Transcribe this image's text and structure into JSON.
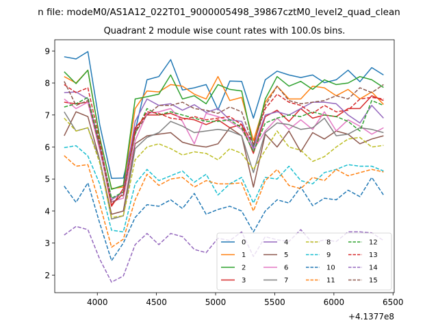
{
  "figure": {
    "suptitle": "n file: modeM0/AS1A12_022T01_9000005498_39867cztM0_level2_quad_clean",
    "offset_label": "+4.1377e8"
  },
  "chart_data": {
    "type": "line",
    "title": "Quadrant 2 module wise count rates with 100.0s bins.",
    "xlabel": "",
    "ylabel": "",
    "xlim": [
      3640,
      6510
    ],
    "ylim": [
      1.45,
      9.35
    ],
    "x_offset": 413770000,
    "xticks": [
      4000,
      4500,
      5000,
      5500,
      6000,
      6500
    ],
    "yticks": [
      2,
      3,
      4,
      5,
      6,
      7,
      8,
      9
    ],
    "grid": false,
    "legend": {
      "placement": "lower-right",
      "ncol": 4
    },
    "x": [
      3720,
      3820,
      3920,
      4020,
      4120,
      4220,
      4320,
      4420,
      4520,
      4620,
      4720,
      4820,
      4920,
      5020,
      5120,
      5220,
      5320,
      5420,
      5520,
      5620,
      5720,
      5820,
      5920,
      6020,
      6120,
      6220,
      6320,
      6420
    ],
    "series": [
      {
        "name": "0",
        "color": "#1f77b4",
        "dash": "solid",
        "values": [
          8.82,
          8.75,
          8.98,
          6.7,
          5.02,
          5.03,
          6.5,
          8.1,
          8.2,
          8.73,
          7.78,
          7.85,
          7.95,
          7.16,
          8.06,
          8.05,
          6.9,
          8.1,
          8.37,
          8.25,
          8.17,
          8.25,
          8.01,
          8.1,
          8.4,
          8.04,
          8.48,
          8.25
        ]
      },
      {
        "name": "1",
        "color": "#ff7f0e",
        "dash": "solid",
        "values": [
          8.2,
          8.0,
          8.4,
          6.3,
          4.7,
          4.75,
          7.2,
          7.75,
          7.72,
          7.95,
          7.9,
          7.65,
          7.5,
          8.2,
          7.45,
          7.55,
          6.2,
          7.4,
          7.9,
          7.5,
          7.5,
          7.9,
          7.85,
          7.6,
          7.8,
          7.5,
          7.72,
          7.33
        ]
      },
      {
        "name": "2",
        "color": "#2ca02c",
        "dash": "solid",
        "values": [
          8.35,
          7.98,
          8.4,
          6.3,
          4.68,
          4.8,
          7.5,
          7.57,
          7.65,
          8.25,
          7.5,
          7.6,
          7.35,
          7.95,
          7.8,
          7.75,
          6.0,
          7.5,
          8.2,
          7.9,
          8.05,
          7.8,
          8.1,
          7.95,
          8.0,
          8.2,
          8.1,
          7.86
        ]
      },
      {
        "name": "3",
        "color": "#d62728",
        "dash": "solid",
        "values": [
          7.4,
          7.35,
          7.4,
          6.0,
          4.15,
          4.7,
          6.6,
          7.0,
          7.0,
          7.05,
          6.9,
          6.85,
          6.7,
          6.85,
          6.6,
          6.7,
          5.8,
          6.95,
          7.15,
          6.8,
          7.2,
          6.9,
          7.0,
          6.95,
          7.2,
          7.2,
          7.6,
          7.45
        ]
      },
      {
        "name": "4",
        "color": "#9467bd",
        "dash": "solid",
        "values": [
          7.7,
          7.72,
          7.5,
          6.1,
          4.35,
          4.6,
          6.8,
          7.5,
          7.3,
          7.35,
          7.15,
          7.32,
          7.08,
          7.2,
          6.85,
          6.8,
          5.95,
          7.0,
          7.1,
          7.0,
          7.2,
          7.4,
          7.4,
          7.35,
          7.0,
          6.75,
          7.3,
          6.9
        ]
      },
      {
        "name": "5",
        "color": "#8c564b",
        "dash": "solid",
        "values": [
          6.35,
          7.1,
          6.95,
          5.6,
          3.9,
          4.0,
          6.1,
          6.35,
          6.4,
          6.45,
          6.15,
          6.05,
          6.0,
          6.1,
          6.6,
          6.35,
          4.75,
          6.4,
          6.0,
          6.5,
          5.85,
          6.45,
          6.25,
          6.5,
          6.4,
          6.1,
          6.25,
          6.35
        ]
      },
      {
        "name": "6",
        "color": "#e377c2",
        "dash": "solid",
        "values": [
          7.5,
          7.2,
          7.4,
          5.9,
          4.3,
          4.4,
          6.2,
          7.05,
          7.1,
          7.2,
          6.8,
          6.1,
          7.05,
          6.95,
          6.8,
          6.55,
          5.9,
          6.5,
          6.9,
          6.55,
          6.85,
          6.55,
          7.1,
          6.5,
          6.85,
          6.65,
          6.4,
          6.6
        ]
      },
      {
        "name": "7",
        "color": "#7f7f7f",
        "dash": "solid",
        "values": [
          7.1,
          6.5,
          6.6,
          5.6,
          3.75,
          3.85,
          5.95,
          6.3,
          6.45,
          6.8,
          6.65,
          6.45,
          6.5,
          6.55,
          6.5,
          6.35,
          5.2,
          6.45,
          6.75,
          6.7,
          6.55,
          6.6,
          6.9,
          6.35,
          6.4,
          6.6,
          6.55,
          6.45
        ]
      },
      {
        "name": "8",
        "color": "#bcbd22",
        "dash": "dashed",
        "values": [
          6.9,
          6.5,
          6.6,
          5.5,
          3.8,
          3.85,
          5.6,
          6.0,
          6.1,
          5.95,
          5.75,
          5.85,
          5.8,
          5.6,
          5.95,
          5.8,
          5.3,
          5.9,
          6.5,
          6.0,
          5.9,
          5.55,
          5.7,
          6.0,
          6.25,
          6.3,
          6.0,
          6.05
        ]
      },
      {
        "name": "9",
        "color": "#17becf",
        "dash": "dashed",
        "values": [
          5.98,
          6.04,
          5.72,
          4.85,
          3.4,
          3.35,
          4.85,
          5.3,
          4.95,
          5.1,
          5.25,
          4.9,
          5.15,
          4.5,
          4.85,
          5.05,
          4.25,
          5.05,
          5.0,
          5.4,
          4.95,
          4.85,
          5.2,
          5.3,
          5.45,
          5.4,
          5.4,
          5.25
        ]
      },
      {
        "name": "10",
        "color": "#1f77b4",
        "dash": "dashed",
        "values": [
          4.78,
          4.27,
          4.88,
          3.62,
          2.45,
          3.0,
          3.8,
          4.2,
          4.15,
          4.35,
          4.08,
          4.55,
          3.9,
          4.05,
          4.15,
          4.0,
          3.35,
          4.0,
          4.35,
          4.25,
          4.75,
          4.17,
          4.4,
          4.35,
          4.65,
          4.45,
          5.05,
          4.5
        ]
      },
      {
        "name": "11",
        "color": "#ff7f0e",
        "dash": "dashed",
        "values": [
          5.73,
          5.4,
          5.45,
          4.22,
          2.87,
          3.12,
          4.35,
          5.15,
          4.8,
          5.0,
          5.05,
          4.75,
          4.95,
          4.85,
          4.85,
          4.88,
          4.0,
          4.95,
          5.3,
          4.8,
          4.7,
          5.05,
          4.95,
          5.3,
          5.1,
          5.2,
          5.3,
          5.22
        ]
      },
      {
        "name": "12",
        "color": "#2ca02c",
        "dash": "dashed",
        "values": [
          7.25,
          7.35,
          7.55,
          6.1,
          4.4,
          4.6,
          6.4,
          7.2,
          7.0,
          7.1,
          7.0,
          6.9,
          6.8,
          6.8,
          6.85,
          6.6,
          5.85,
          6.75,
          6.9,
          7.0,
          6.95,
          7.1,
          7.0,
          6.95,
          6.8,
          6.5,
          7.45,
          7.3
        ]
      },
      {
        "name": "13",
        "color": "#d62728",
        "dash": "dashed",
        "values": [
          7.95,
          7.7,
          7.85,
          6.2,
          4.2,
          4.55,
          6.5,
          7.1,
          7.05,
          6.9,
          6.85,
          6.95,
          6.85,
          6.9,
          6.95,
          6.7,
          6.1,
          7.2,
          7.65,
          7.4,
          7.3,
          7.05,
          7.3,
          7.1,
          7.15,
          7.5,
          7.55,
          7.5
        ]
      },
      {
        "name": "14",
        "color": "#9467bd",
        "dash": "dashed",
        "values": [
          3.25,
          3.52,
          3.42,
          2.5,
          1.78,
          1.97,
          2.95,
          3.3,
          2.95,
          3.3,
          3.2,
          2.8,
          2.7,
          3.15,
          3.08,
          3.35,
          2.58,
          3.2,
          3.1,
          3.05,
          3.42,
          3.0,
          3.1,
          3.05,
          3.35,
          3.35,
          3.32,
          3.08
        ]
      },
      {
        "name": "15",
        "color": "#8c564b",
        "dash": "dashed",
        "values": [
          8.05,
          7.3,
          7.45,
          6.0,
          4.25,
          4.5,
          6.45,
          7.0,
          7.3,
          7.3,
          7.4,
          7.2,
          7.15,
          7.05,
          7.25,
          7.1,
          6.05,
          7.3,
          7.9,
          7.45,
          7.35,
          7.4,
          7.45,
          7.6,
          7.5,
          7.85,
          7.7,
          7.95
        ]
      }
    ]
  }
}
